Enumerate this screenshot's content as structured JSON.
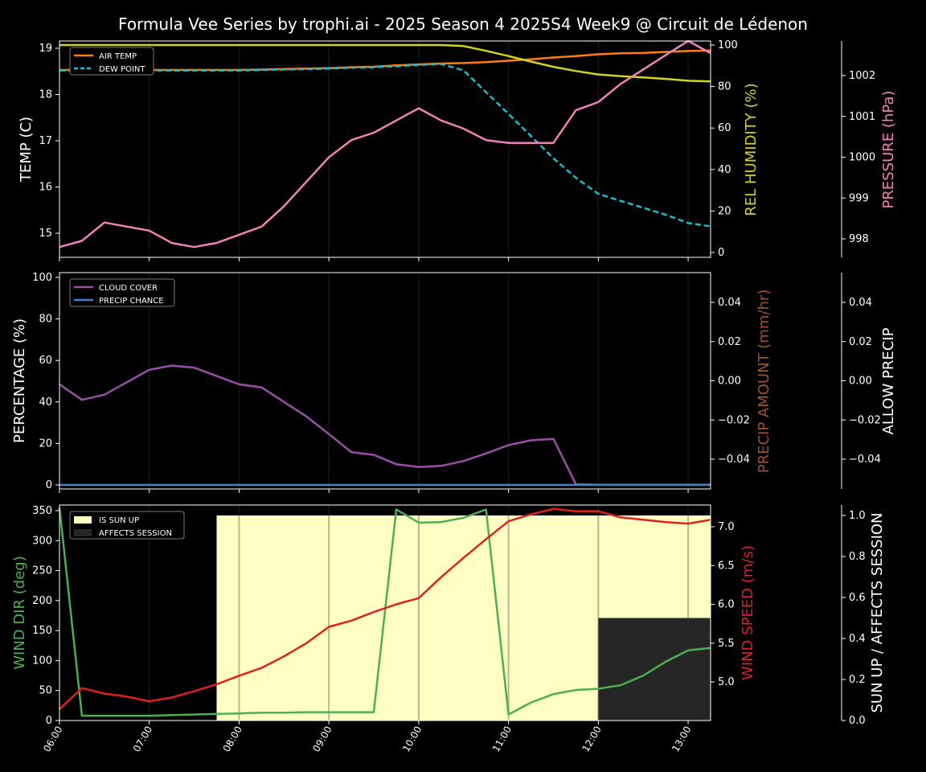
{
  "title": "Formula Vee Series by trophi.ai - 2025 Season 4 2025S4 Week9 @ Circuit de Lédenon",
  "x_ticks": [
    "06:00",
    "07:00",
    "08:00",
    "09:00",
    "10:00",
    "11:00",
    "12:00",
    "13:00"
  ],
  "colors": {
    "air_temp": "#ff7f0e",
    "dew_point": "#17becf",
    "humidity": "#d4d41a",
    "pressure": "#ee82b9",
    "cloud": "#9b4fa8",
    "precip_chance": "#4a7fc1",
    "precip_amount": "#a0522d",
    "wind_dir": "#4caf50",
    "wind_speed": "#e02020",
    "sun_up": "#ffffc4",
    "affects": "#262626"
  },
  "chart_data": [
    {
      "type": "line",
      "panel": "temperature",
      "x": [
        6.0,
        6.25,
        6.5,
        6.75,
        7.0,
        7.25,
        7.5,
        7.75,
        8.0,
        8.25,
        8.5,
        8.75,
        9.0,
        9.25,
        9.5,
        9.75,
        10.0,
        10.25,
        10.5,
        10.75,
        11.0,
        11.25,
        11.5,
        11.75,
        12.0,
        12.25,
        12.5,
        12.75,
        13.0,
        13.25
      ],
      "ylabel_left": "TEMP (C)",
      "ylabel_right": "REL HUMIDITY (%)",
      "ylabel_right2": "PRESSURE (hPa)",
      "yticks_left": [
        15,
        16,
        17,
        18,
        19
      ],
      "yticks_right": [
        0,
        20,
        40,
        60,
        80,
        100
      ],
      "yticks_right2": [
        998,
        999,
        1000,
        1001,
        1002
      ],
      "legend": [
        "AIR TEMP",
        "DEW POINT"
      ],
      "legend_position": "upper-left",
      "series": [
        {
          "name": "AIR TEMP",
          "axis": "left",
          "values": [
            18.53,
            18.53,
            18.53,
            18.53,
            18.53,
            18.53,
            18.53,
            18.53,
            18.53,
            18.54,
            18.55,
            18.56,
            18.57,
            18.59,
            18.6,
            18.63,
            18.65,
            18.67,
            18.68,
            18.7,
            18.73,
            18.76,
            18.8,
            18.83,
            18.87,
            18.89,
            18.9,
            18.92,
            18.94,
            18.95
          ]
        },
        {
          "name": "DEW POINT",
          "axis": "left",
          "values": [
            18.52,
            18.52,
            18.52,
            18.52,
            18.52,
            18.52,
            18.52,
            18.52,
            18.52,
            18.53,
            18.54,
            18.55,
            18.56,
            18.58,
            18.59,
            18.61,
            18.64,
            18.66,
            18.52,
            18.05,
            17.58,
            17.1,
            16.62,
            16.2,
            15.85,
            15.7,
            15.55,
            15.4,
            15.22,
            15.15
          ]
        },
        {
          "name": "REL HUMIDITY",
          "axis": "right",
          "values": [
            100,
            100,
            100,
            100,
            100,
            100,
            100,
            100,
            100,
            100,
            100,
            100,
            100,
            100,
            100,
            100,
            100,
            100,
            99.5,
            97.2,
            94.7,
            92.0,
            89.5,
            87.5,
            85.8,
            85.0,
            84.4,
            83.7,
            82.8,
            82.5
          ]
        },
        {
          "name": "PRESSURE",
          "axis": "right2",
          "values": [
            997.8,
            997.95,
            998.4,
            998.3,
            998.2,
            997.9,
            997.8,
            997.9,
            998.1,
            998.3,
            998.8,
            999.4,
            1000.0,
            1000.42,
            1000.6,
            1000.9,
            1001.2,
            1000.9,
            1000.7,
            1000.42,
            1000.35,
            1000.35,
            1000.35,
            1001.15,
            1001.35,
            1001.8,
            1002.15,
            1002.5,
            1002.85,
            1002.55
          ]
        }
      ]
    },
    {
      "type": "line",
      "panel": "precipitation",
      "x": [
        6.0,
        6.25,
        6.5,
        6.75,
        7.0,
        7.25,
        7.5,
        7.75,
        8.0,
        8.25,
        8.5,
        8.75,
        9.0,
        9.25,
        9.5,
        9.75,
        10.0,
        10.25,
        10.5,
        10.75,
        11.0,
        11.25,
        11.5,
        11.75,
        12.0,
        12.25,
        12.5,
        12.75,
        13.0,
        13.25
      ],
      "ylabel_left": "PERCENTAGE (%)",
      "ylabel_right": "PRECIP AMOUNT (mm/hr)",
      "ylabel_right2": "ALLOW PRECIP",
      "yticks_left": [
        0,
        20,
        40,
        60,
        80,
        100
      ],
      "yticks_right": [
        "0.04",
        "0.02",
        "0.00",
        "−0.02",
        "−0.04"
      ],
      "yticks_right2": [
        "0.04",
        "0.02",
        "0.00",
        "−0.02",
        "−0.04"
      ],
      "legend": [
        "CLOUD COVER",
        "PRECIP CHANCE"
      ],
      "legend_position": "upper-left",
      "series": [
        {
          "name": "CLOUD COVER",
          "axis": "left",
          "values": [
            48.5,
            41.0,
            43.5,
            49.5,
            55.5,
            57.5,
            56.5,
            52.5,
            48.5,
            47.0,
            40.0,
            33.0,
            24.5,
            15.8,
            14.5,
            10.0,
            8.6,
            9.2,
            11.5,
            15.2,
            19.2,
            21.5,
            22.2,
            0.3,
            0.1,
            0.1,
            0.1,
            0.1,
            0.1,
            0.1
          ]
        },
        {
          "name": "PRECIP CHANCE",
          "axis": "left",
          "values": [
            0,
            0,
            0,
            0,
            0,
            0,
            0,
            0,
            0,
            0,
            0,
            0,
            0,
            0,
            0,
            0,
            0,
            0,
            0,
            0,
            0,
            0,
            0,
            0,
            0,
            0,
            0,
            0,
            0,
            0
          ]
        }
      ]
    },
    {
      "type": "line",
      "panel": "wind",
      "x": [
        6.0,
        6.25,
        6.5,
        6.75,
        7.0,
        7.25,
        7.5,
        7.75,
        8.0,
        8.25,
        8.5,
        8.75,
        9.0,
        9.25,
        9.5,
        9.75,
        10.0,
        10.25,
        10.5,
        10.75,
        11.0,
        11.25,
        11.5,
        11.75,
        12.0,
        12.25,
        12.5,
        12.75,
        13.0,
        13.25
      ],
      "ylabel_left": "WIND DIR (deg)",
      "ylabel_right": "WIND SPEED (m/s)",
      "ylabel_right2": "SUN UP / AFFECTS SESSION",
      "yticks_left": [
        0,
        50,
        100,
        150,
        200,
        250,
        300,
        350
      ],
      "yticks_right": [
        "5.0",
        "5.5",
        "6.0",
        "6.5",
        "7.0"
      ],
      "yticks_right2": [
        "0.0",
        "0.2",
        "0.4",
        "0.6",
        "0.8",
        "1.0"
      ],
      "legend": [
        "IS SUN UP",
        "AFFECTS SESSION"
      ],
      "legend_position": "upper-left",
      "sun_up": {
        "start": 7.75,
        "end": 13.25,
        "value": 1
      },
      "affects_session": {
        "start": 12.0,
        "end": 13.25,
        "value": 1
      },
      "series": [
        {
          "name": "WIND DIR",
          "axis": "left",
          "values": [
            355,
            8,
            8,
            8,
            8,
            9,
            10,
            11,
            12,
            13,
            13,
            14,
            14,
            14,
            14,
            352,
            330,
            331,
            338,
            352,
            10,
            30,
            44,
            51,
            53,
            59,
            75,
            98,
            117,
            121
          ]
        },
        {
          "name": "WIND SPEED",
          "axis": "right",
          "values": [
            4.65,
            4.92,
            4.85,
            4.81,
            4.75,
            4.8,
            4.88,
            4.97,
            5.08,
            5.18,
            5.33,
            5.5,
            5.71,
            5.79,
            5.9,
            6.0,
            6.08,
            6.35,
            6.6,
            6.84,
            7.07,
            7.16,
            7.23,
            7.2,
            7.2,
            7.12,
            7.09,
            7.06,
            7.04,
            7.09
          ]
        }
      ]
    }
  ]
}
